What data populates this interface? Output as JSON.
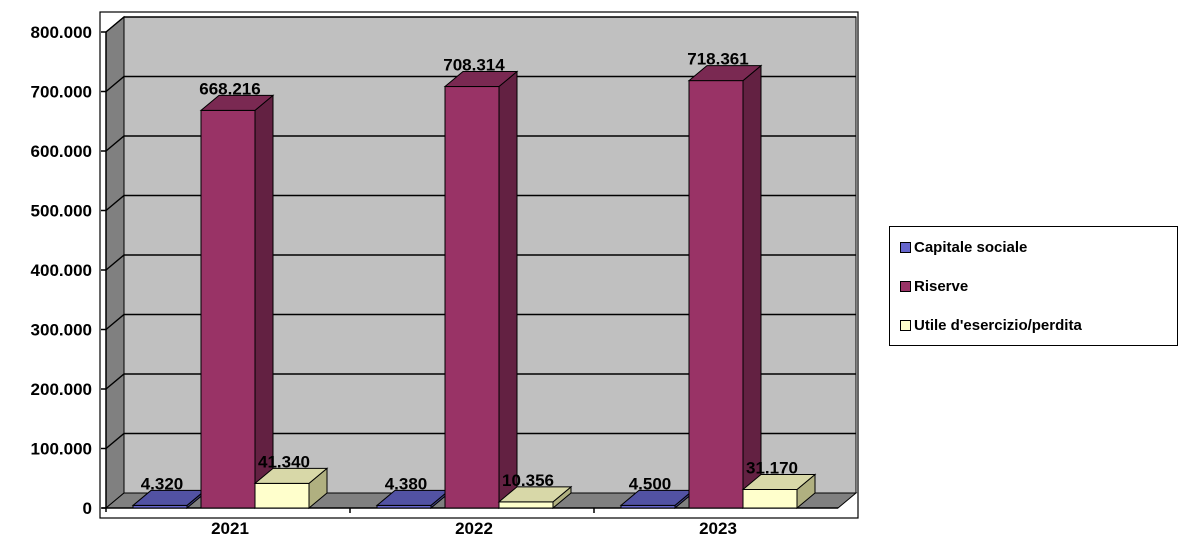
{
  "chart_data": {
    "type": "bar",
    "categories": [
      "2021",
      "2022",
      "2023"
    ],
    "series": [
      {
        "name": "Capitale sociale",
        "values": [
          4320,
          4380,
          4500
        ],
        "labels": [
          "4.320",
          "4.380",
          "4.500"
        ],
        "color": "#6666cc"
      },
      {
        "name": "Riserve",
        "values": [
          668216,
          708314,
          718361
        ],
        "labels": [
          "668.216",
          "708.314",
          "718.361"
        ],
        "color": "#993366"
      },
      {
        "name": "Utile d'esercizio/perdita",
        "values": [
          41340,
          10356,
          31170
        ],
        "labels": [
          "41.340",
          "10.356",
          "31.170"
        ],
        "color": "#ffffcc"
      }
    ],
    "y_ticks": [
      0,
      100000,
      200000,
      300000,
      400000,
      500000,
      600000,
      700000,
      800000
    ],
    "y_tick_labels": [
      "0",
      "100.000",
      "200.000",
      "300.000",
      "400.000",
      "500.000",
      "600.000",
      "700.000",
      "800.000"
    ],
    "ylim": [
      0,
      800000
    ],
    "grid": true,
    "legend_position": "right",
    "style": "3d",
    "wall_color": "#c0c0c0",
    "side_wall_color": "#808080",
    "floor_color": "#808080"
  },
  "legend": {
    "items": [
      {
        "label": "Capitale sociale",
        "color": "#6666cc"
      },
      {
        "label": "Riserve",
        "color": "#993366"
      },
      {
        "label": "Utile d'esercizio/perdita",
        "color": "#ffffcc"
      }
    ]
  }
}
